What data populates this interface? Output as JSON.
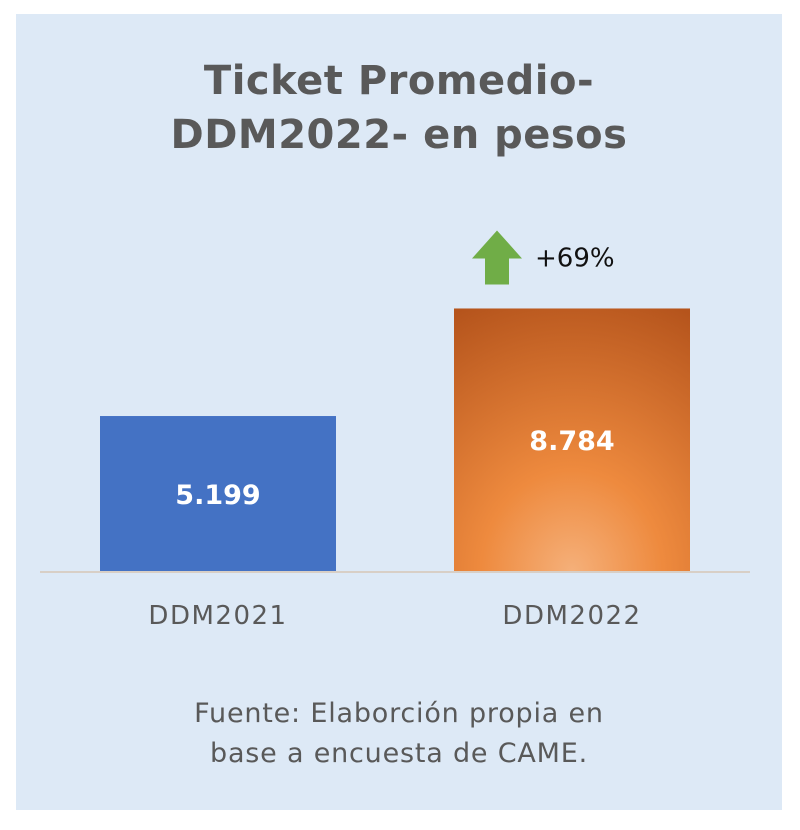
{
  "chart_data": {
    "type": "bar",
    "title_lines": [
      "Ticket Promedio-",
      "DDM2022- en pesos"
    ],
    "categories": [
      "DDM2021",
      "DDM2022"
    ],
    "values": [
      5199,
      8784
    ],
    "value_labels": [
      "5.199",
      "8.784"
    ],
    "bar_colors": [
      "#4472c4",
      "#e07a2e"
    ],
    "annotation": {
      "text": "+69%",
      "icon": "up-arrow-icon",
      "color": "#70ad47",
      "category": "DDM2022"
    },
    "xlabel": "",
    "ylabel": "",
    "grid": false,
    "legend": "none"
  },
  "source_lines": [
    "Fuente: Elaborción propia en",
    "base a encuesta de CAME."
  ]
}
